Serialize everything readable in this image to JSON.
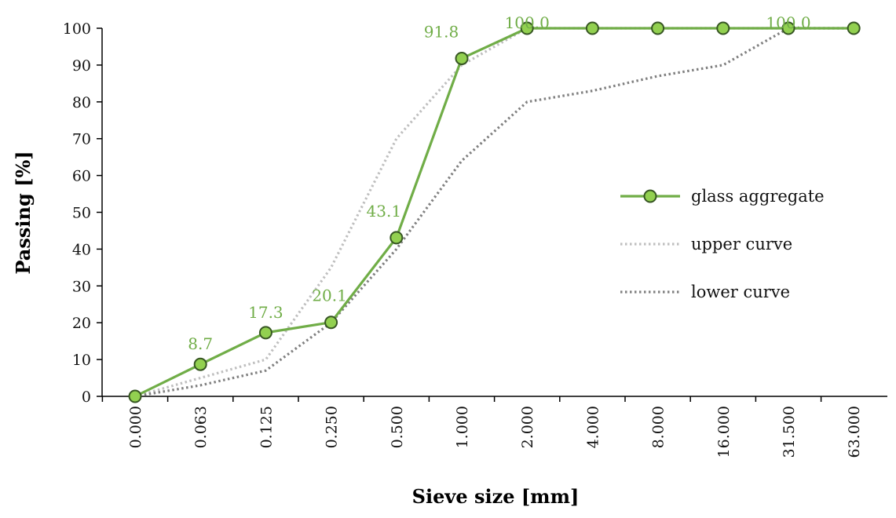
{
  "chart_data": {
    "type": "line",
    "title": "",
    "xlabel": "Sieve size [mm]",
    "ylabel": "Passing [%]",
    "ylim": [
      0,
      100
    ],
    "yticks": [
      "0",
      "10",
      "20",
      "30",
      "40",
      "50",
      "60",
      "70",
      "80",
      "90",
      "100"
    ],
    "categories": [
      "0.000",
      "0.063",
      "0.125",
      "0.250",
      "0.500",
      "1.000",
      "2.000",
      "4.000",
      "8.000",
      "16.000",
      "31.500",
      "63.000"
    ],
    "grid": false,
    "legend_position": "right",
    "series": [
      {
        "name": "glass aggregate",
        "values": [
          0,
          8.7,
          17.3,
          20.1,
          43.1,
          91.8,
          100.0,
          100.0,
          100.0,
          100.0,
          100.0,
          100.0
        ],
        "labels": [
          "",
          "8.7",
          "17.3",
          "20.1",
          "43.1",
          "91.8",
          "100.0",
          "",
          "",
          "",
          "100.0",
          ""
        ],
        "color": "#70ad47",
        "marker_fill": "#92d050",
        "style": "solid"
      },
      {
        "name": "upper curve",
        "values": [
          0,
          5,
          10,
          35,
          70,
          90,
          100,
          100,
          100,
          100,
          100,
          100
        ],
        "color": "#bfbfbf",
        "style": "dotted"
      },
      {
        "name": "lower curve",
        "values": [
          0,
          3,
          7,
          20,
          40,
          64,
          80,
          83,
          87,
          90,
          100,
          100
        ],
        "color": "#808080",
        "style": "dotted"
      }
    ]
  }
}
